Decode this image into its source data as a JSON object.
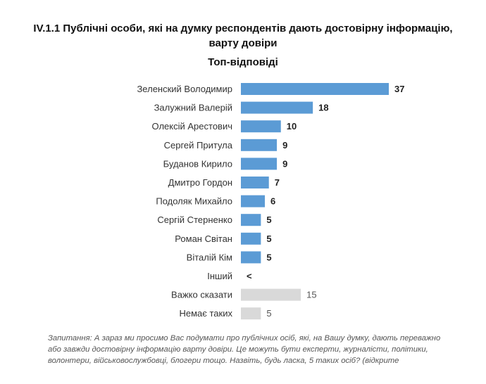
{
  "title_lines": [
    "IV.1.1 Публічні особи, які на думку респондентів дають достовірну інформацію,",
    "варту довіри"
  ],
  "subtitle": "Топ-відповіді",
  "note": "Запитання: А зараз ми просимо Вас подумати про публічних осіб, які, на Вашу думку, дають переважно або завжди достовірну інформацію варту довіри. Це можуть бути експерти, журналісти, політики, волонтери, військовослужбовці, блогери тощо. Назвіть, будь ласка, 5 таких осіб? (відкрите",
  "chart_data": {
    "type": "bar",
    "orientation": "horizontal",
    "categories": [
      "Зеленский Володимир",
      "Залужний Валерій",
      "Олексій Арестович",
      "Сергей Притула",
      "Буданов Кирило",
      "Дмитро Гордон",
      "Подоляк Михайло",
      "Сергій Стерненко",
      "Роман Світан",
      "Віталій Кім",
      "Інший",
      "Важко сказати",
      "Немає таких"
    ],
    "values": [
      37,
      18,
      10,
      9,
      9,
      7,
      6,
      5,
      5,
      5,
      null,
      15,
      5
    ],
    "value_labels": [
      "37",
      "18",
      "10",
      "9",
      "9",
      "7",
      "6",
      "5",
      "5",
      "5",
      "<",
      "15",
      "5"
    ],
    "groups": [
      "main",
      "main",
      "main",
      "main",
      "main",
      "main",
      "main",
      "main",
      "main",
      "main",
      "main",
      "other",
      "other"
    ],
    "colors": {
      "main": "#5b9bd5",
      "other": "#d9d9d9"
    },
    "xlim": [
      0,
      37
    ],
    "grid": false,
    "legend": "none"
  }
}
